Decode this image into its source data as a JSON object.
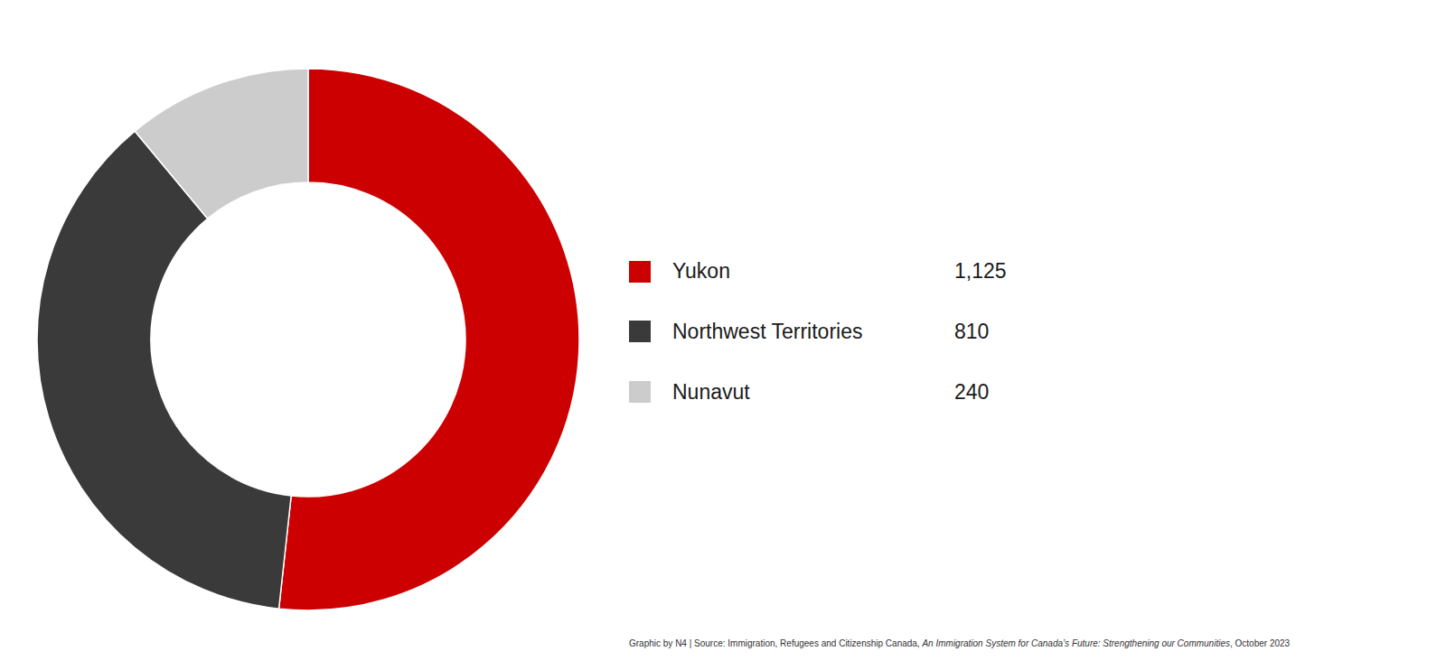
{
  "chart_data": {
    "type": "pie",
    "categories": [
      "Yukon",
      "Northwest Territories",
      "Nunavut"
    ],
    "values": [
      1125,
      810,
      240
    ],
    "value_labels": [
      "1,125",
      "810",
      "240"
    ],
    "colors": [
      "#cc0000",
      "#3a3a3a",
      "#cccccc"
    ],
    "legend": "right",
    "annotations": [
      "Graphic by N4 | Source: Immigration, Refugees and Citizenship Canada, ",
      "An Immigration System for Canada’s Future: Strengthening our Communities",
      ", October 2023"
    ]
  }
}
